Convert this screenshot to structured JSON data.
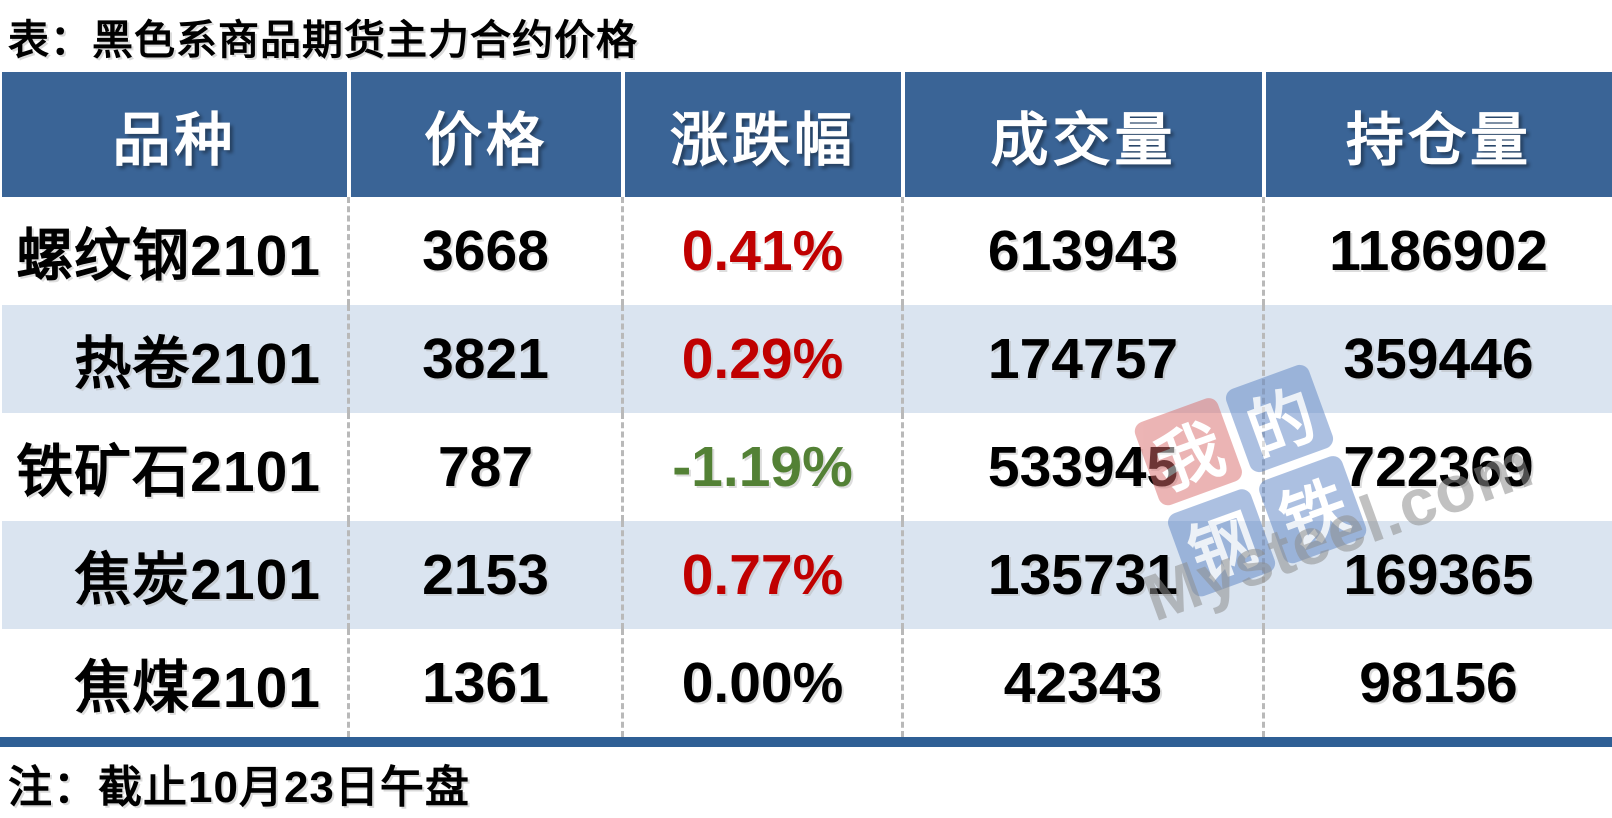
{
  "title": "表：黑色系商品期货主力合约价格",
  "note": "注：截止10月23日午盘",
  "colors": {
    "header_bg": "#3A6496",
    "row_alt_bg": "#DAE4F0",
    "divider_bar": "#2F5F95",
    "up_red": "#C00000",
    "down_green": "#538135",
    "flat_black": "#000000",
    "watermark_tile_red": "#D96B6B",
    "watermark_tile_blue": "#5B83C4"
  },
  "table": {
    "headers": [
      "品种",
      "价格",
      "涨跌幅",
      "成交量",
      "持仓量"
    ],
    "rows": [
      {
        "variety": "螺纹钢2101",
        "price": "3668",
        "change": "0.41%",
        "direction": "up",
        "volume": "613943",
        "open_interest": "1186902"
      },
      {
        "variety": "热卷2101",
        "price": "3821",
        "change": "0.29%",
        "direction": "up",
        "volume": "174757",
        "open_interest": "359446"
      },
      {
        "variety": "铁矿石2101",
        "price": "787",
        "change": "-1.19%",
        "direction": "down",
        "volume": "533945",
        "open_interest": "722369"
      },
      {
        "variety": "焦炭2101",
        "price": "2153",
        "change": "0.77%",
        "direction": "up",
        "volume": "135731",
        "open_interest": "169365"
      },
      {
        "variety": "焦煤2101",
        "price": "1361",
        "change": "0.00%",
        "direction": "flat",
        "volume": "42343",
        "open_interest": "98156"
      }
    ]
  },
  "watermark": {
    "tiles": [
      "我",
      "的",
      "钢",
      "铁"
    ],
    "domain": "Mysteel.com"
  },
  "chart_data": {
    "type": "table",
    "title": "表：黑色系商品期货主力合约价格",
    "columns": [
      "品种",
      "价格",
      "涨跌幅",
      "成交量",
      "持仓量"
    ],
    "rows": [
      [
        "螺纹钢2101",
        3668,
        "0.41%",
        613943,
        1186902
      ],
      [
        "热卷2101",
        3821,
        "0.29%",
        174757,
        359446
      ],
      [
        "铁矿石2101",
        787,
        "-1.19%",
        533945,
        722369
      ],
      [
        "焦炭2101",
        2153,
        "0.77%",
        135731,
        169365
      ],
      [
        "焦煤2101",
        1361,
        "0.00%",
        42343,
        98156
      ]
    ],
    "note": "注：截止10月23日午盘",
    "change_colors": {
      "positive": "#C00000",
      "negative": "#538135",
      "zero": "#000000"
    }
  }
}
